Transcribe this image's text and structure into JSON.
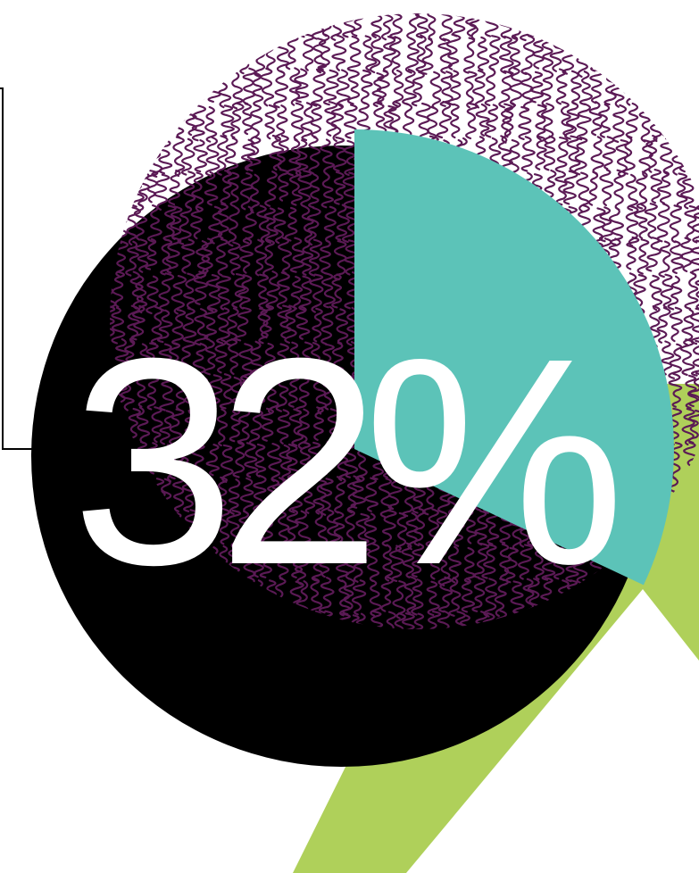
{
  "headline": {
    "value_text": "32%",
    "value": 32
  },
  "colors": {
    "background": "#ffffff",
    "accent_green": "#afd05a",
    "black_disc": "#000000",
    "scribble_purple": "#5b1a55",
    "teal_wedge": "#5cc3b8",
    "text": "#ffffff"
  },
  "decorative_shapes": [
    "green-diagonal-stripe",
    "black-disc",
    "purple-scribble-disc",
    "teal-pie-wedge",
    "black-bracket-line"
  ]
}
